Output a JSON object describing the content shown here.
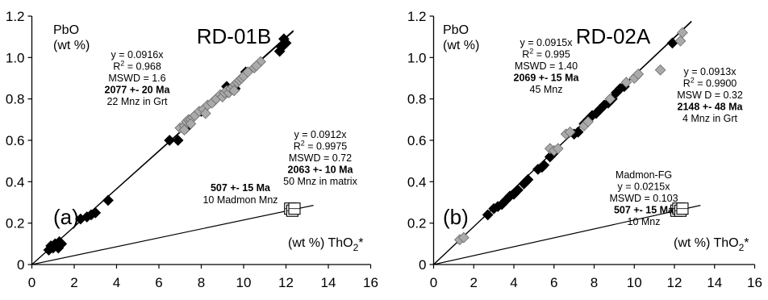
{
  "chart_data": [
    {
      "type": "scatter",
      "panel": "(a)",
      "title": "RD-01B",
      "ylabel": "PbO",
      "ylabel_unit": "(wt %)",
      "xlabel": "(wt %) ThO2*",
      "xlim": [
        0,
        16
      ],
      "ylim": [
        0,
        1.2
      ],
      "xticks": [
        "0",
        "2",
        "4",
        "6",
        "8",
        "10",
        "12",
        "14",
        "16"
      ],
      "yticks": [
        "0",
        "0.2",
        "0.4",
        "0.6",
        "0.8",
        "1.0",
        "1.2"
      ],
      "series": [
        {
          "name": "22 Mnz in Grt",
          "marker": "black-diamond",
          "color": "#000000",
          "points": [
            [
              0.8,
              0.07
            ],
            [
              0.9,
              0.09
            ],
            [
              1.0,
              0.08
            ],
            [
              1.1,
              0.1
            ],
            [
              1.2,
              0.09
            ],
            [
              1.3,
              0.11
            ],
            [
              1.4,
              0.1
            ],
            [
              1.25,
              0.08
            ],
            [
              2.3,
              0.22
            ],
            [
              2.6,
              0.23
            ],
            [
              2.8,
              0.24
            ],
            [
              3.0,
              0.25
            ],
            [
              3.6,
              0.31
            ],
            [
              6.5,
              0.6
            ],
            [
              6.9,
              0.6
            ],
            [
              7.3,
              0.66
            ],
            [
              8.0,
              0.74
            ],
            [
              8.6,
              0.79
            ],
            [
              9.2,
              0.86
            ],
            [
              9.6,
              0.85
            ],
            [
              10.1,
              0.93
            ],
            [
              11.7,
              1.03
            ],
            [
              11.8,
              1.05
            ],
            [
              12.0,
              1.07
            ],
            [
              11.9,
              1.09
            ]
          ]
        },
        {
          "name": "50 Mnz in matrix",
          "marker": "gray-diamond",
          "color": "#aaaaaa",
          "points": [
            [
              7.0,
              0.66
            ],
            [
              7.2,
              0.67
            ],
            [
              7.3,
              0.69
            ],
            [
              7.4,
              0.7
            ],
            [
              7.5,
              0.7
            ],
            [
              7.6,
              0.71
            ],
            [
              7.2,
              0.65
            ],
            [
              7.5,
              0.68
            ],
            [
              7.7,
              0.72
            ],
            [
              7.9,
              0.74
            ],
            [
              8.1,
              0.75
            ],
            [
              8.3,
              0.77
            ],
            [
              8.5,
              0.78
            ],
            [
              8.2,
              0.73
            ],
            [
              8.7,
              0.8
            ],
            [
              8.9,
              0.82
            ],
            [
              9.0,
              0.81
            ],
            [
              9.1,
              0.83
            ],
            [
              9.2,
              0.84
            ],
            [
              9.3,
              0.83
            ],
            [
              9.4,
              0.85
            ],
            [
              9.5,
              0.86
            ],
            [
              9.6,
              0.87
            ],
            [
              9.7,
              0.88
            ],
            [
              9.8,
              0.89
            ],
            [
              9.9,
              0.9
            ],
            [
              10.0,
              0.91
            ],
            [
              10.2,
              0.93
            ],
            [
              10.5,
              0.95
            ],
            [
              10.8,
              0.98
            ],
            [
              10.6,
              0.96
            ],
            [
              9.55,
              0.84
            ]
          ]
        },
        {
          "name": "10 Madmon Mnz",
          "marker": "open-square",
          "color": "#000000",
          "points": [
            [
              12.2,
              0.27
            ],
            [
              12.3,
              0.26
            ],
            [
              12.4,
              0.27
            ]
          ]
        }
      ],
      "fit_lines": [
        {
          "slope": 0.0916,
          "x_max": 12.35
        },
        {
          "slope": 0.0912,
          "x_max": 12.35
        },
        {
          "slope": 0.0215,
          "x_max": 13.3
        }
      ],
      "annotations": [
        {
          "lines": [
            {
              "text": "y = 0.0916x"
            },
            {
              "text": "R",
              "sup": "2",
              "rest": " = 0.968"
            },
            {
              "text": "MSWD = 1.6"
            },
            {
              "text": "2077 +- 20 Ma",
              "bold": true
            },
            {
              "text": "22 Mnz in Grt"
            }
          ]
        },
        {
          "lines": [
            {
              "text": "y = 0.0912x"
            },
            {
              "text": "R",
              "sup": "2",
              "rest": " = 0.9975"
            },
            {
              "text": "MSWD = 0.72"
            },
            {
              "text": "2063 +- 10 Ma",
              "bold": true
            },
            {
              "text": "50 Mnz in matrix"
            }
          ]
        },
        {
          "lines": [
            {
              "text": "507 +- 15 Ma",
              "bold": true
            },
            {
              "text": "10 Madmon Mnz"
            }
          ]
        }
      ]
    },
    {
      "type": "scatter",
      "panel": "(b)",
      "title": "RD-02A",
      "ylabel": "PbO",
      "ylabel_unit": "(wt %)",
      "xlabel": "(wt %) ThO2*",
      "xlim": [
        0,
        16
      ],
      "ylim": [
        0,
        1.2
      ],
      "xticks": [
        "0",
        "2",
        "4",
        "6",
        "8",
        "10",
        "12",
        "14",
        "16"
      ],
      "yticks": [
        "0",
        "0.2",
        "0.4",
        "0.6",
        "0.8",
        "1.0",
        "1.2"
      ],
      "series": [
        {
          "name": "45 Mnz",
          "marker": "black-diamond",
          "color": "#000000",
          "points": [
            [
              2.7,
              0.24
            ],
            [
              3.0,
              0.27
            ],
            [
              3.2,
              0.28
            ],
            [
              3.4,
              0.29
            ],
            [
              3.6,
              0.31
            ],
            [
              3.8,
              0.33
            ],
            [
              4.0,
              0.34
            ],
            [
              4.2,
              0.36
            ],
            [
              4.5,
              0.39
            ],
            [
              4.6,
              0.4
            ],
            [
              4.7,
              0.41
            ],
            [
              5.2,
              0.46
            ],
            [
              5.4,
              0.47
            ],
            [
              5.5,
              0.48
            ],
            [
              5.8,
              0.52
            ],
            [
              6.0,
              0.54
            ],
            [
              7.0,
              0.63
            ],
            [
              7.2,
              0.64
            ],
            [
              7.5,
              0.68
            ],
            [
              7.7,
              0.7
            ],
            [
              7.9,
              0.72
            ],
            [
              8.1,
              0.73
            ],
            [
              8.3,
              0.75
            ],
            [
              8.5,
              0.77
            ],
            [
              8.7,
              0.78
            ],
            [
              8.9,
              0.8
            ],
            [
              9.1,
              0.83
            ],
            [
              9.3,
              0.85
            ],
            [
              9.5,
              0.86
            ],
            [
              10.1,
              0.91
            ],
            [
              11.9,
              1.07
            ]
          ]
        },
        {
          "name": "4 Mnz in Grt",
          "marker": "gray-diamond",
          "color": "#aaaaaa",
          "points": [
            [
              1.3,
              0.12
            ],
            [
              1.5,
              0.13
            ],
            [
              5.8,
              0.56
            ],
            [
              6.0,
              0.55
            ],
            [
              6.2,
              0.56
            ],
            [
              6.6,
              0.63
            ],
            [
              6.8,
              0.64
            ],
            [
              7.5,
              0.67
            ],
            [
              7.7,
              0.69
            ],
            [
              8.8,
              0.8
            ],
            [
              9.6,
              0.88
            ],
            [
              10.0,
              0.9
            ],
            [
              10.2,
              0.92
            ],
            [
              11.3,
              0.94
            ],
            [
              12.3,
              1.08
            ],
            [
              12.4,
              1.12
            ]
          ]
        },
        {
          "name": "10 Mnz",
          "marker": "open-square",
          "color": "#000000",
          "points": [
            [
              12.1,
              0.26
            ],
            [
              12.2,
              0.27
            ],
            [
              12.3,
              0.26
            ],
            [
              12.4,
              0.27
            ]
          ]
        }
      ],
      "fit_lines": [
        {
          "slope": 0.0915,
          "x_max": 12.85
        },
        {
          "slope": 0.0913,
          "x_max": 12.85
        },
        {
          "slope": 0.0215,
          "x_max": 13.3
        }
      ],
      "annotations": [
        {
          "lines": [
            {
              "text": "y = 0.0915x"
            },
            {
              "text": "R",
              "sup": "2",
              "rest": " = 0.995"
            },
            {
              "text": "MSWD = 1.40"
            },
            {
              "text": "2069 +- 15 Ma",
              "bold": true
            },
            {
              "text": "45 Mnz"
            }
          ]
        },
        {
          "lines": [
            {
              "text": "y = 0.0913x"
            },
            {
              "text": "R",
              "sup": "2",
              "rest": " = 0.9900"
            },
            {
              "text": "MSW D = 0.32"
            },
            {
              "text": "2148 +- 48 Ma",
              "bold": true
            },
            {
              "text": "4 Mnz in Grt"
            }
          ]
        },
        {
          "lines": [
            {
              "text": "Madmon-FG"
            },
            {
              "text": "y = 0.0215x"
            },
            {
              "text": "MSWD = 0.103"
            },
            {
              "text": "507 +- 15 Ma",
              "bold": true
            },
            {
              "text": "10 Mnz"
            }
          ]
        }
      ]
    }
  ]
}
